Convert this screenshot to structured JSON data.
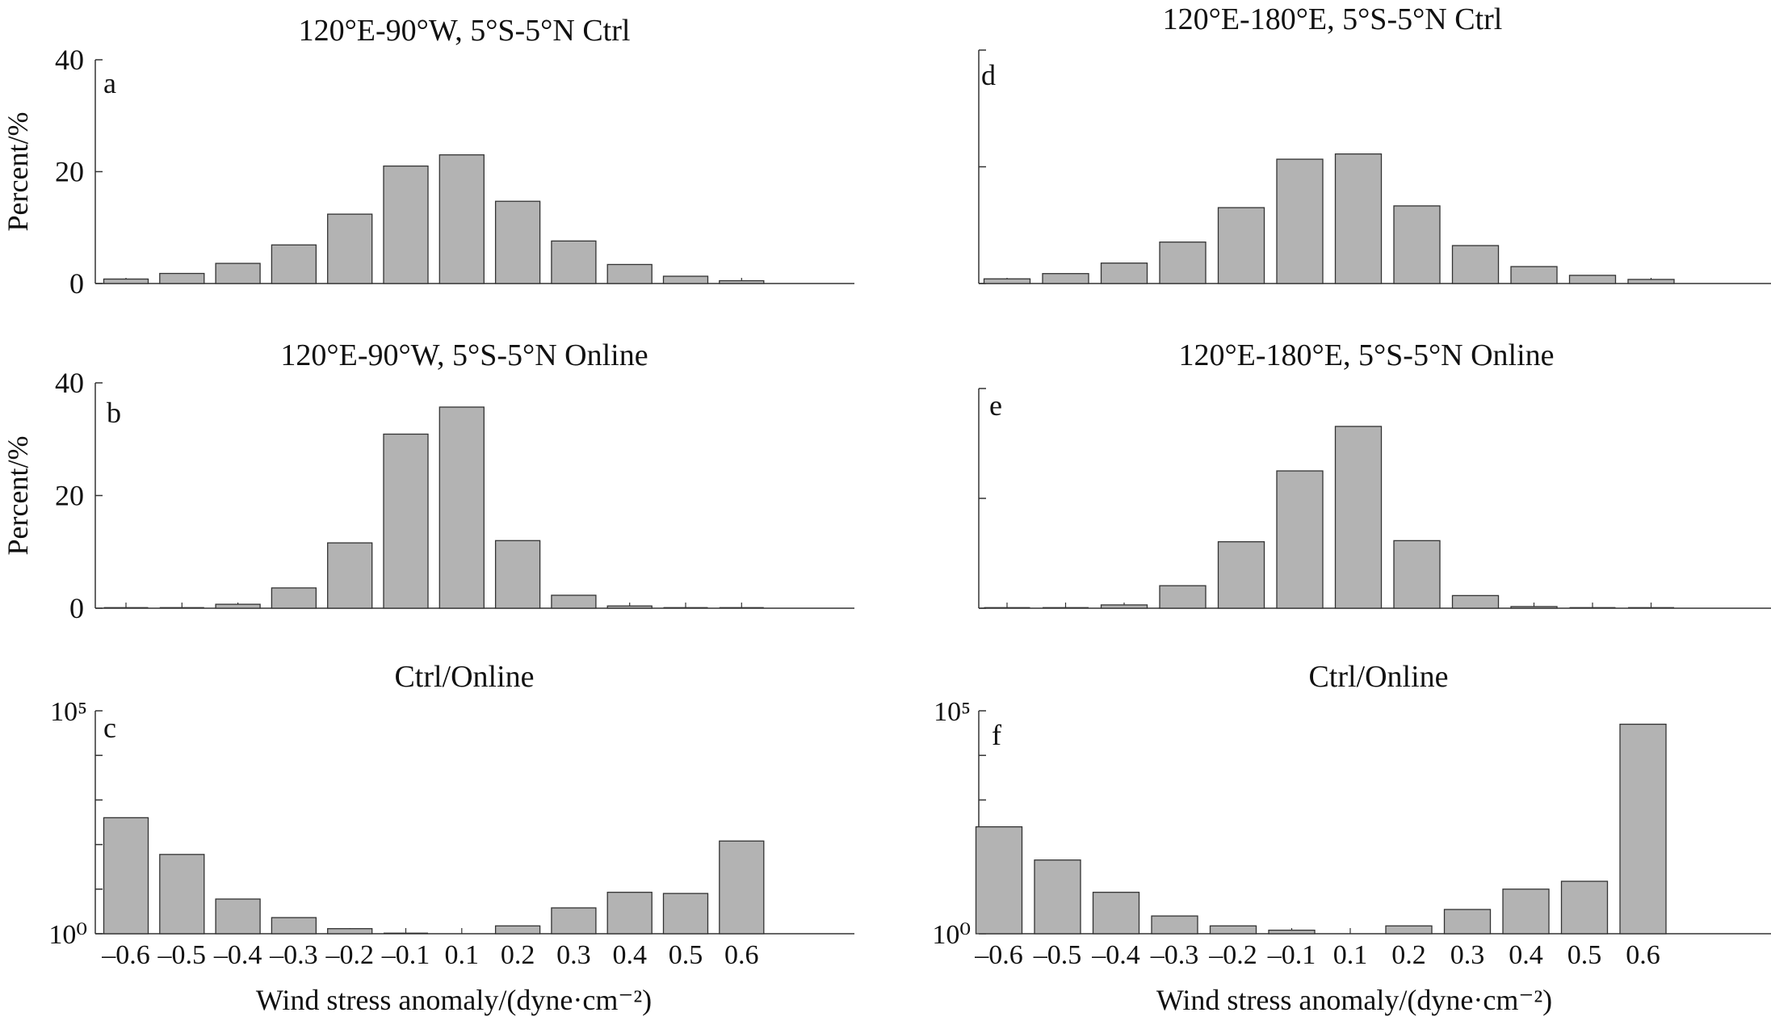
{
  "figure": {
    "bar_color": "#b3b3b3",
    "bar_edge": "#333333",
    "axis_color": "#333333"
  },
  "chart_data": [
    {
      "id": "a",
      "type": "bar",
      "panel_label": "a",
      "title": "120°E-90°W, 5°S-5°N Ctrl",
      "ylabel": "Percent/%",
      "xlabel": "",
      "yscale": "linear",
      "ylim": [
        0,
        40
      ],
      "yticks": [
        "0",
        "20",
        "40"
      ],
      "categories": [
        "–0.6",
        "–0.5",
        "–0.4",
        "–0.3",
        "–0.2",
        "–0.1",
        "0.1",
        "0.2",
        "0.3",
        "0.4",
        "0.5",
        "0.6"
      ],
      "tick_labels_visible": false,
      "values": [
        0.8,
        1.8,
        3.6,
        6.9,
        12.4,
        21.0,
        23.0,
        14.7,
        7.6,
        3.4,
        1.3,
        0.5
      ]
    },
    {
      "id": "b",
      "type": "bar",
      "panel_label": "b",
      "title": "120°E-90°W, 5°S-5°N Online",
      "ylabel": "Percent/%",
      "xlabel": "",
      "yscale": "linear",
      "ylim": [
        0,
        40
      ],
      "yticks": [
        "0",
        "20",
        "40"
      ],
      "categories": [
        "–0.6",
        "–0.5",
        "–0.4",
        "–0.3",
        "–0.2",
        "–0.1",
        "0.1",
        "0.2",
        "0.3",
        "0.4",
        "0.5",
        "0.6"
      ],
      "tick_labels_visible": false,
      "values": [
        0.0,
        0.05,
        0.7,
        3.6,
        11.6,
        30.9,
        35.7,
        12.0,
        2.3,
        0.4,
        0.1,
        0.0
      ]
    },
    {
      "id": "c",
      "type": "bar",
      "panel_label": "c",
      "title": "Ctrl/Online",
      "ylabel": "",
      "xlabel": "Wind stress anomaly/(dyne·cm⁻²)",
      "yscale": "log",
      "ylim": [
        1,
        100000
      ],
      "yticks": [
        "10⁰",
        "10⁵"
      ],
      "categories": [
        "–0.6",
        "–0.5",
        "–0.4",
        "–0.3",
        "–0.2",
        "–0.1",
        "0.1",
        "0.2",
        "0.3",
        "0.4",
        "0.5",
        "0.6"
      ],
      "tick_labels_visible": true,
      "values": [
        400,
        60,
        6,
        2.3,
        1.3,
        0.9,
        null,
        1.5,
        3.8,
        8.5,
        8,
        120
      ]
    },
    {
      "id": "d",
      "type": "bar",
      "panel_label": "d",
      "title": "120°E-180°E, 5°S-5°N Ctrl",
      "ylabel": "",
      "xlabel": "",
      "yscale": "linear",
      "ylim": [
        0,
        40
      ],
      "yticks": [],
      "categories": [
        "–0.6",
        "–0.5",
        "–0.4",
        "–0.3",
        "–0.2",
        "–0.1",
        "0.1",
        "0.2",
        "0.3",
        "0.4",
        "0.5",
        "0.6"
      ],
      "tick_labels_visible": false,
      "values": [
        0.8,
        1.7,
        3.5,
        7.1,
        13.0,
        21.3,
        22.2,
        13.3,
        6.5,
        2.9,
        1.4,
        0.7
      ]
    },
    {
      "id": "e",
      "type": "bar",
      "panel_label": "e",
      "title": "120°E-180°E, 5°S-5°N Online",
      "ylabel": "",
      "xlabel": "",
      "yscale": "linear",
      "ylim": [
        0,
        40
      ],
      "yticks": [],
      "categories": [
        "–0.6",
        "–0.5",
        "–0.4",
        "–0.3",
        "–0.2",
        "–0.1",
        "0.1",
        "0.2",
        "0.3",
        "0.4",
        "0.5",
        "0.6"
      ],
      "tick_labels_visible": false,
      "values": [
        0.0,
        0.1,
        0.6,
        4.1,
        12.1,
        25.0,
        33.1,
        12.3,
        2.3,
        0.3,
        0.1,
        0.0
      ]
    },
    {
      "id": "f",
      "type": "bar",
      "panel_label": "f",
      "title": "Ctrl/Online",
      "ylabel": "",
      "xlabel": "Wind stress anomaly/(dyne·cm⁻²)",
      "yscale": "log",
      "ylim": [
        1,
        100000
      ],
      "yticks": [
        "10⁰",
        "10⁵"
      ],
      "categories": [
        "–0.6",
        "–0.5",
        "–0.4",
        "–0.3",
        "–0.2",
        "–0.1",
        "0.1",
        "0.2",
        "0.3",
        "0.4",
        "0.5",
        "0.6"
      ],
      "tick_labels_visible": true,
      "values": [
        250,
        45,
        8.5,
        2.5,
        1.5,
        1.2,
        null,
        1.5,
        3.5,
        10,
        15,
        50000
      ]
    }
  ]
}
